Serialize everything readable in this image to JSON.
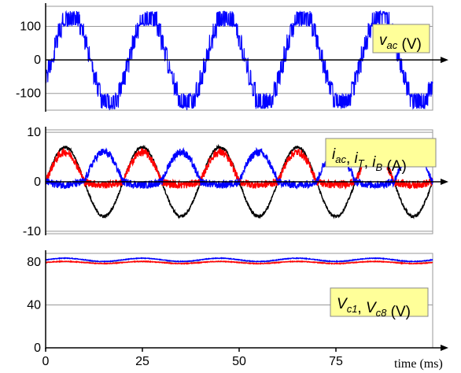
{
  "chart_data": [
    {
      "type": "line",
      "panel": "top",
      "x_unit": "ms",
      "xlim": [
        0,
        100
      ],
      "ylim": [
        -150,
        160
      ],
      "yticks": [
        100,
        0,
        -100
      ],
      "ytick_labels": [
        "100",
        "0",
        "-100"
      ],
      "legend": {
        "main": "v",
        "sub": "ac",
        "unit": " (V)"
      },
      "legend_placement": "top-right",
      "grid": true,
      "series": [
        {
          "color": "#0000ff",
          "shape": "multilevel-pwm",
          "period_ms": 20,
          "levels": [
            140,
            105,
            70,
            35,
            0,
            -35,
            -70,
            -105,
            -140
          ]
        }
      ]
    },
    {
      "type": "line",
      "panel": "middle",
      "x_unit": "ms",
      "xlim": [
        0,
        100
      ],
      "ylim": [
        -10,
        10
      ],
      "yticks": [
        10,
        0,
        -10
      ],
      "ytick_labels": [
        "10",
        "0",
        "-10"
      ],
      "legend": {
        "parts": [
          {
            "main": "i",
            "sub": "ac"
          },
          {
            "main": "i",
            "sub": "T"
          },
          {
            "main": "i",
            "sub": "B"
          }
        ],
        "unit": " (A)"
      },
      "legend_placement": "top-right",
      "grid": true,
      "series": [
        {
          "color": "#000000",
          "shape": "sine",
          "amplitude": 7,
          "period_ms": 20,
          "offset": 0
        },
        {
          "color": "#ff0000",
          "shape": "half-rectified",
          "amplitude": 6,
          "period_ms": 20,
          "polarity": "positive"
        },
        {
          "color": "#0000ff",
          "shape": "half-rectified",
          "amplitude": 6,
          "period_ms": 20,
          "polarity": "negative"
        }
      ]
    },
    {
      "type": "line",
      "panel": "bottom",
      "x_unit": "ms",
      "xlim": [
        0,
        100
      ],
      "ylim": [
        0,
        88
      ],
      "yticks": [
        80,
        40,
        0
      ],
      "ytick_labels": [
        "80",
        "40",
        "0"
      ],
      "xticks": [
        0,
        25,
        50,
        75
      ],
      "xtick_labels": [
        "0",
        "25",
        "50",
        "75"
      ],
      "xlabel": "time (ms)",
      "legend": {
        "parts": [
          {
            "main": "V",
            "sub": "c1"
          },
          {
            "main": "V",
            "sub": "c8"
          }
        ],
        "unit": " (V)"
      },
      "legend_placement": "bottom-right",
      "grid": true,
      "series": [
        {
          "color": "#0000ff",
          "shape": "ripple",
          "mean": 82,
          "ripple": 1.5,
          "period_ms": 20
        },
        {
          "color": "#ff0000",
          "shape": "ripple",
          "mean": 79.5,
          "ripple": 1.0,
          "period_ms": 20
        }
      ]
    }
  ]
}
